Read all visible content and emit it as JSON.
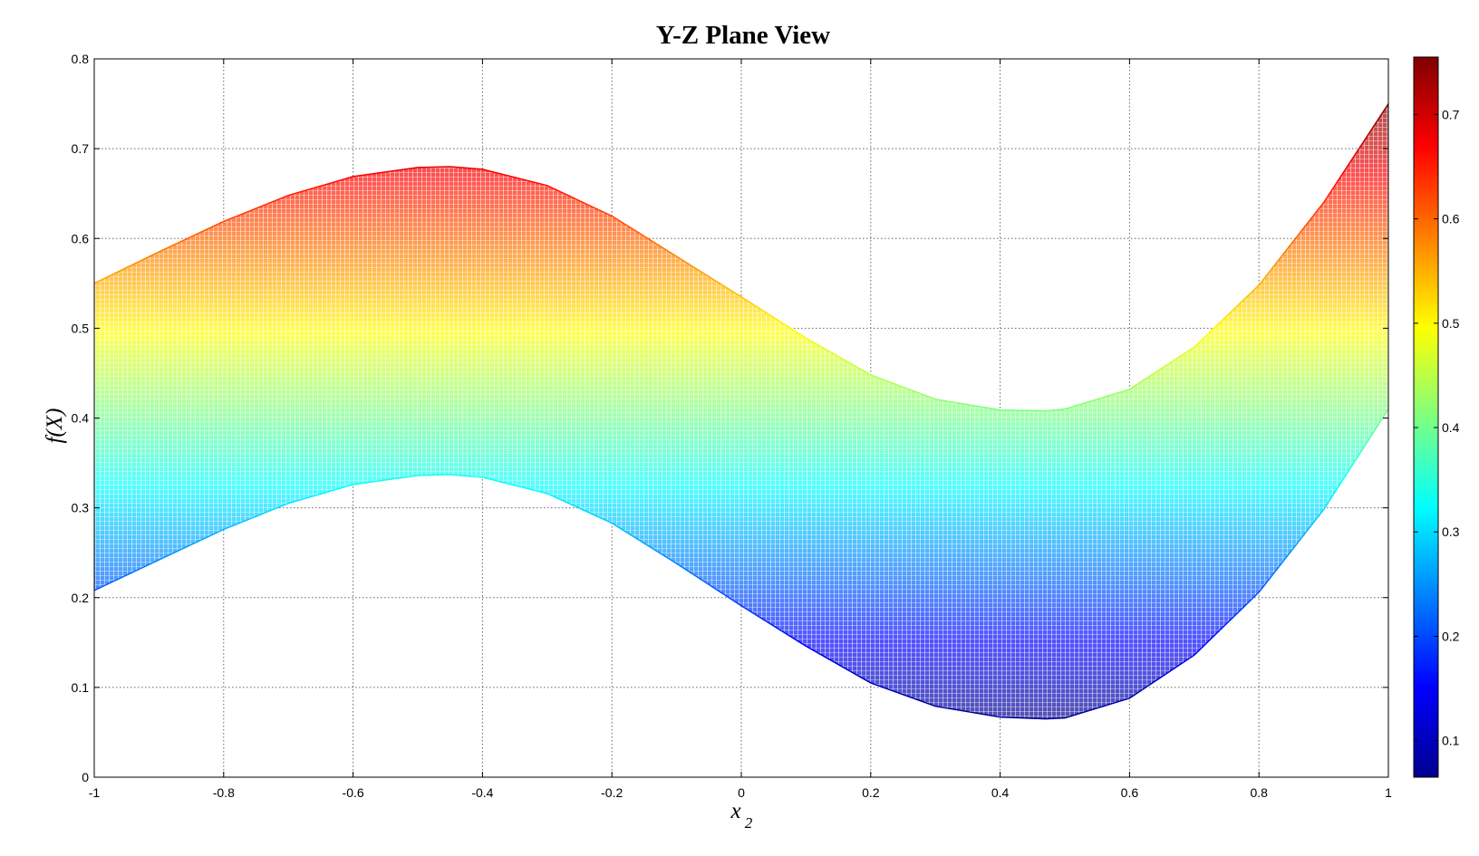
{
  "chart_data": {
    "type": "area",
    "title": "Y-Z Plane View",
    "xlabel_main": "x",
    "xlabel_sub": "2",
    "ylabel": "f(X)",
    "xlim": [
      -1,
      1
    ],
    "ylim": [
      0,
      0.8
    ],
    "x_ticks": [
      "-1",
      "-0.8",
      "-0.6",
      "-0.4",
      "-0.2",
      "0",
      "0.2",
      "0.4",
      "0.6",
      "0.8",
      "1"
    ],
    "y_ticks": [
      "0",
      "0.1",
      "0.2",
      "0.3",
      "0.4",
      "0.5",
      "0.6",
      "0.7",
      "0.8"
    ],
    "grid": true,
    "colormap": "jet",
    "colorbar": {
      "range": [
        0.065,
        0.755
      ],
      "ticks": [
        "0.1",
        "0.2",
        "0.3",
        "0.4",
        "0.5",
        "0.6",
        "0.7"
      ]
    },
    "x": [
      -1.0,
      -0.9,
      -0.8,
      -0.7,
      -0.6,
      -0.5,
      -0.45,
      -0.4,
      -0.3,
      -0.2,
      -0.1,
      0.0,
      0.1,
      0.2,
      0.3,
      0.4,
      0.47,
      0.5,
      0.6,
      0.7,
      0.8,
      0.9,
      1.0
    ],
    "upper_envelope": [
      0.55,
      0.585,
      0.619,
      0.648,
      0.669,
      0.679,
      0.68,
      0.677,
      0.659,
      0.625,
      0.58,
      0.535,
      0.489,
      0.448,
      0.421,
      0.409,
      0.408,
      0.41,
      0.432,
      0.479,
      0.548,
      0.64,
      0.75
    ],
    "lower_envelope": [
      0.208,
      0.242,
      0.276,
      0.305,
      0.326,
      0.336,
      0.337,
      0.334,
      0.316,
      0.283,
      0.238,
      0.191,
      0.146,
      0.105,
      0.079,
      0.067,
      0.065,
      0.066,
      0.088,
      0.136,
      0.206,
      0.298,
      0.41
    ]
  },
  "colors": {
    "grid": "#666666",
    "axes": "#000000",
    "background": "#ffffff"
  }
}
